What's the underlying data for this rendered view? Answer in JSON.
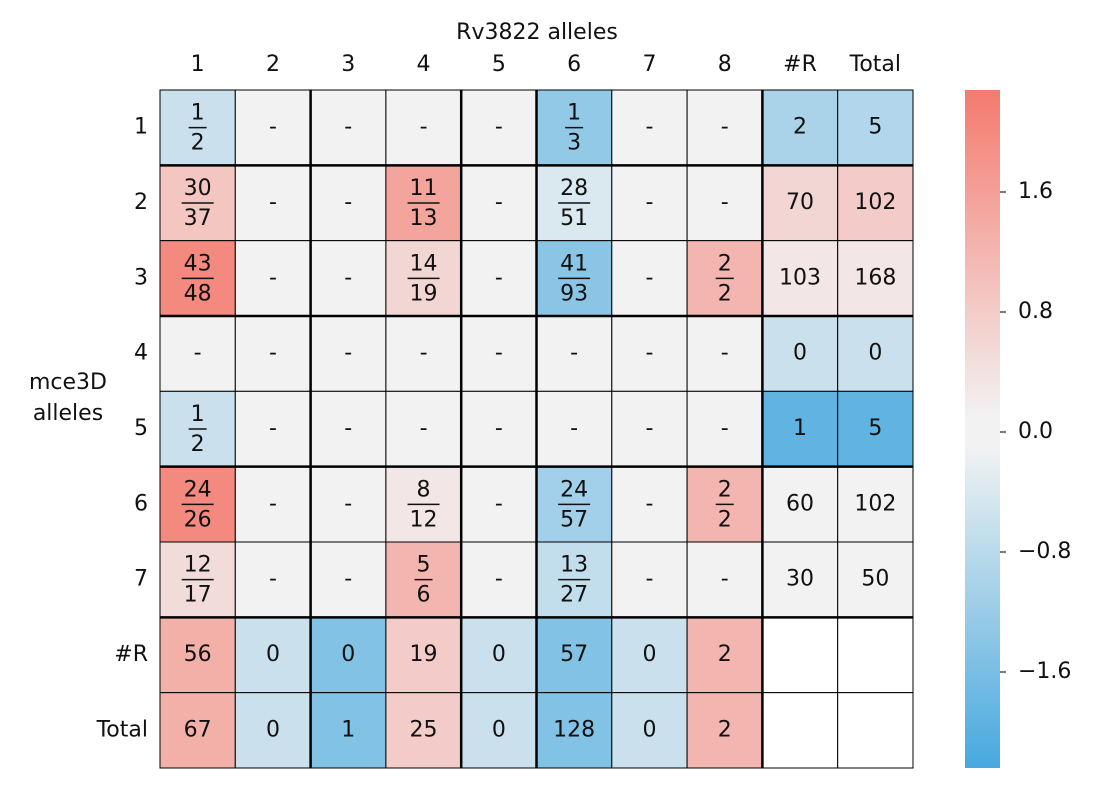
{
  "chart_data": {
    "type": "heatmap",
    "title": "Rv3822 alleles",
    "ylabel": [
      "mce3D",
      "alleles"
    ],
    "columns": [
      "1",
      "2",
      "3",
      "4",
      "5",
      "6",
      "7",
      "8",
      "#R",
      "Total"
    ],
    "rows": [
      "1",
      "2",
      "3",
      "4",
      "5",
      "6",
      "7",
      "#R",
      "Total"
    ],
    "labels": [
      [
        {
          "num": 1,
          "den": 2
        },
        "-",
        "-",
        "-",
        "-",
        {
          "num": 1,
          "den": 3
        },
        "-",
        "-",
        2,
        5
      ],
      [
        {
          "num": 30,
          "den": 37
        },
        "-",
        "-",
        {
          "num": 11,
          "den": 13
        },
        "-",
        {
          "num": 28,
          "den": 51
        },
        "-",
        "-",
        70,
        102
      ],
      [
        {
          "num": 43,
          "den": 48
        },
        "-",
        "-",
        {
          "num": 14,
          "den": 19
        },
        "-",
        {
          "num": 41,
          "den": 93
        },
        "-",
        {
          "num": 2,
          "den": 2
        },
        103,
        168
      ],
      [
        "-",
        "-",
        "-",
        "-",
        "-",
        "-",
        "-",
        "-",
        0,
        0
      ],
      [
        {
          "num": 1,
          "den": 2
        },
        "-",
        "-",
        "-",
        "-",
        "-",
        "-",
        "-",
        1,
        5
      ],
      [
        {
          "num": 24,
          "den": 26
        },
        "-",
        "-",
        {
          "num": 8,
          "den": 12
        },
        "-",
        {
          "num": 24,
          "den": 57
        },
        "-",
        {
          "num": 2,
          "den": 2
        },
        60,
        102
      ],
      [
        {
          "num": 12,
          "den": 17
        },
        "-",
        "-",
        {
          "num": 5,
          "den": 6
        },
        "-",
        {
          "num": 13,
          "den": 27
        },
        "-",
        "-",
        30,
        50
      ],
      [
        56,
        0,
        0,
        19,
        0,
        57,
        0,
        2,
        null,
        null
      ],
      [
        67,
        0,
        1,
        25,
        0,
        128,
        0,
        2,
        null,
        null
      ]
    ],
    "values": [
      [
        -0.6,
        0,
        0,
        0,
        0,
        -1.3,
        0,
        0,
        -1.0,
        -0.9
      ],
      [
        0.9,
        0,
        0,
        1.5,
        0,
        -0.4,
        0,
        0,
        0.6,
        0.8
      ],
      [
        2.0,
        0,
        0,
        0.6,
        0,
        -1.4,
        0,
        1.2,
        0.3,
        0.3
      ],
      [
        0,
        0,
        0,
        0,
        0,
        0,
        0,
        0,
        -0.6,
        -0.6
      ],
      [
        -0.6,
        0,
        0,
        0,
        0,
        0,
        0,
        0,
        -1.9,
        -1.9
      ],
      [
        2.0,
        0,
        0,
        0.3,
        0,
        -1.1,
        0,
        1.2,
        0,
        0
      ],
      [
        0.5,
        0,
        0,
        1.2,
        0,
        -0.7,
        0,
        0,
        0,
        0
      ],
      [
        1.3,
        -0.6,
        -1.5,
        0.8,
        -0.6,
        -1.5,
        -0.6,
        1.2,
        null,
        null
      ],
      [
        1.3,
        -0.6,
        -1.5,
        0.8,
        -0.6,
        -1.5,
        -0.6,
        1.2,
        null,
        null
      ]
    ],
    "clim": [
      -2.24,
      2.28
    ],
    "cticks": [
      1.6,
      0.8,
      {
        "value": 0,
        "label": "0.0"
      },
      {
        "value": -0.8,
        "label": "−0.8"
      },
      {
        "value": -1.6,
        "label": "−1.6"
      }
    ],
    "colors": {
      "low": "#46a8de",
      "mid": "#f2f2f2",
      "high": "#f47a6e"
    }
  }
}
